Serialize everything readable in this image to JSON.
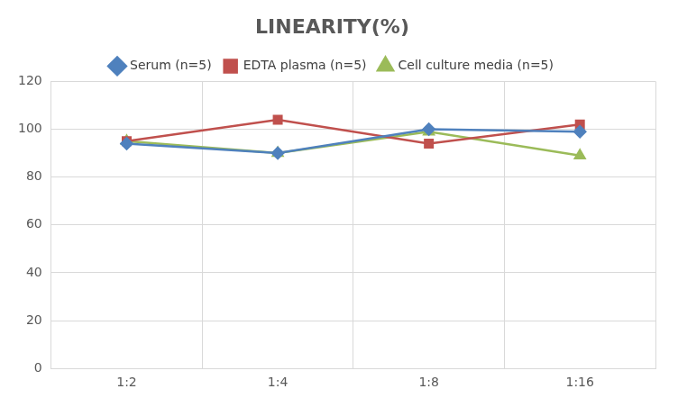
{
  "chart_data": {
    "type": "line",
    "title": "LINEARITY(%)",
    "categories": [
      "1:2",
      "1:4",
      "1:8",
      "1:16"
    ],
    "series": [
      {
        "name": "Serum (n=5)",
        "color": "#4f81bd",
        "marker": "diamond",
        "values": [
          94,
          90,
          100,
          99
        ]
      },
      {
        "name": "EDTA plasma (n=5)",
        "color": "#c0504d",
        "marker": "square",
        "values": [
          95,
          104,
          94,
          102
        ]
      },
      {
        "name": "Cell culture media (n=5)",
        "color": "#9bbb59",
        "marker": "triangle",
        "values": [
          95,
          90,
          99,
          89
        ]
      }
    ],
    "ylim": [
      0,
      120
    ],
    "yticks": [
      0,
      20,
      40,
      60,
      80,
      100,
      120
    ],
    "grid": true,
    "legend": "top"
  }
}
